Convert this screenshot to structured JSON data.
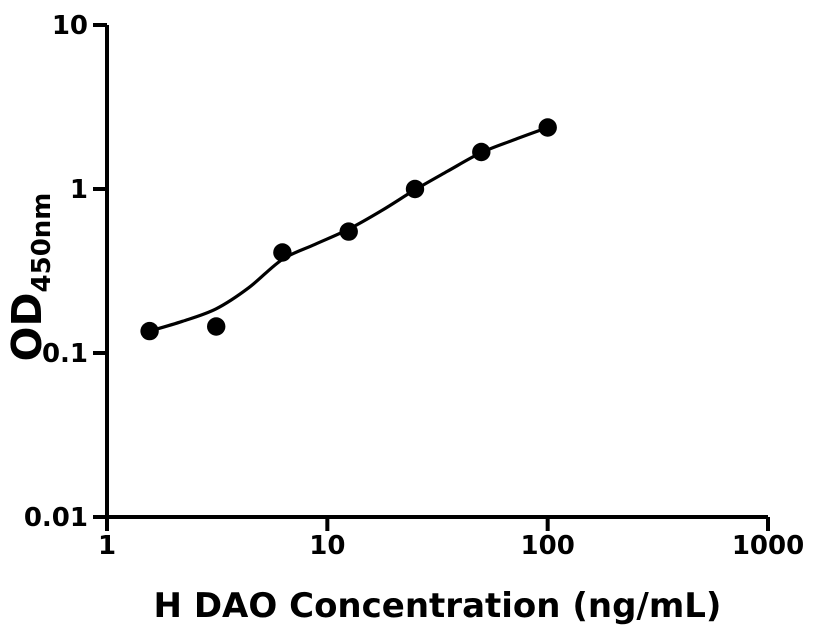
{
  "figure": {
    "background_color": "#ffffff",
    "foreground_color": "#000000"
  },
  "chart_data": {
    "type": "scatter",
    "title": "",
    "xlabel": "H DAO Concentration (ng/mL)",
    "ylabel": "OD",
    "ylabel_subscript": "450nm",
    "x_scale": "log",
    "y_scale": "log",
    "xlim": [
      1,
      1000
    ],
    "ylim": [
      0.01,
      10
    ],
    "x_ticks": [
      1,
      10,
      100,
      1000
    ],
    "x_tick_labels": [
      "1",
      "10",
      "100",
      "1000"
    ],
    "y_ticks": [
      10,
      1,
      0.1,
      0.01
    ],
    "y_tick_labels": [
      "10",
      "1",
      "0.1",
      "0.01"
    ],
    "grid": false,
    "legend": null,
    "point_color": "#000000",
    "line_color": "#000000",
    "axis_color": "#000000",
    "series": [
      {
        "name": "standard-curve-points",
        "marker": "filled-circle",
        "x": [
          1.56,
          3.13,
          6.25,
          12.5,
          25,
          50,
          100
        ],
        "y": [
          0.136,
          0.145,
          0.41,
          0.55,
          1.0,
          1.68,
          2.37
        ]
      }
    ],
    "fit_curve": {
      "name": "4pl-fit-line",
      "x": [
        1.56,
        2.2,
        3.13,
        4.4,
        6.25,
        8.8,
        12.5,
        17.7,
        25,
        35,
        50,
        70,
        100
      ],
      "y": [
        0.136,
        0.156,
        0.186,
        0.25,
        0.372,
        0.46,
        0.569,
        0.74,
        0.989,
        1.28,
        1.667,
        1.99,
        2.37
      ]
    }
  }
}
